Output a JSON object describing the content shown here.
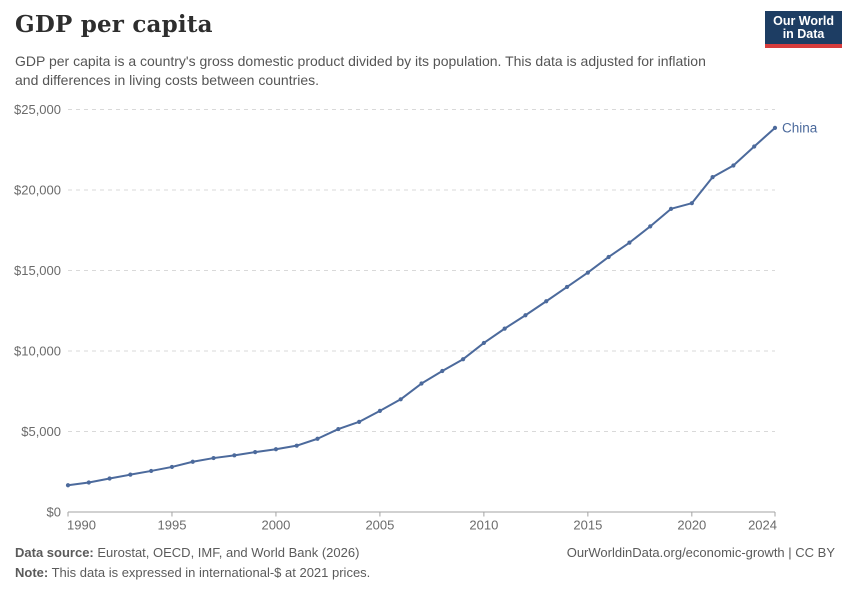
{
  "header": {
    "title": "GDP per capita",
    "subtitle": "GDP per capita is a country's gross domestic product divided by its population. This data is adjusted for inflation and differences in living costs between countries.",
    "logo": {
      "line1": "Our World",
      "line2": "in Data",
      "bg": "#1d3d63",
      "accent": "#d73c3c"
    }
  },
  "chart_data": {
    "type": "line",
    "title": "GDP per capita",
    "xlabel": "",
    "ylabel": "",
    "x": [
      1990,
      1991,
      1992,
      1993,
      1994,
      1995,
      1996,
      1997,
      1998,
      1999,
      2000,
      2001,
      2002,
      2003,
      2004,
      2005,
      2006,
      2007,
      2008,
      2009,
      2010,
      2011,
      2012,
      2013,
      2014,
      2015,
      2016,
      2017,
      2018,
      2019,
      2020,
      2021,
      2022,
      2023,
      2024
    ],
    "series": [
      {
        "name": "China",
        "color": "#4c6a9c",
        "values": [
          1660,
          1830,
          2080,
          2320,
          2550,
          2800,
          3120,
          3350,
          3520,
          3720,
          3900,
          4120,
          4550,
          5150,
          5600,
          6280,
          7000,
          7980,
          8760,
          9490,
          10500,
          11390,
          12220,
          13090,
          13980,
          14870,
          15840,
          16730,
          17740,
          18830,
          19180,
          20800,
          21520,
          22700,
          23860
        ]
      }
    ],
    "ylim": [
      0,
      25000
    ],
    "yticks": {
      "values": [
        0,
        5000,
        10000,
        15000,
        20000,
        25000
      ],
      "labels": [
        "$0",
        "$5,000",
        "$10,000",
        "$15,000",
        "$20,000",
        "$25,000"
      ]
    },
    "xticks": [
      1990,
      1995,
      2000,
      2005,
      2010,
      2015,
      2020,
      2024
    ],
    "grid": "dashed-horizontal",
    "legend": "end-of-line-label",
    "markers": true
  },
  "footer": {
    "source_label": "Data source:",
    "source_text": "Eurostat, OECD, IMF, and World Bank (2026)",
    "note_label": "Note:",
    "note_text": "This data is expressed in international-$ at 2021 prices.",
    "link_text": "OurWorldinData.org/economic-growth | CC BY"
  },
  "colors": {
    "line": "#4c6a9c",
    "grid": "#d9d9d9",
    "axis": "#a3a3a3",
    "tick_text": "#6b6b6b",
    "title_text": "#2e2e2e",
    "subtitle_text": "#555555",
    "footer_text": "#5b5b5b"
  }
}
